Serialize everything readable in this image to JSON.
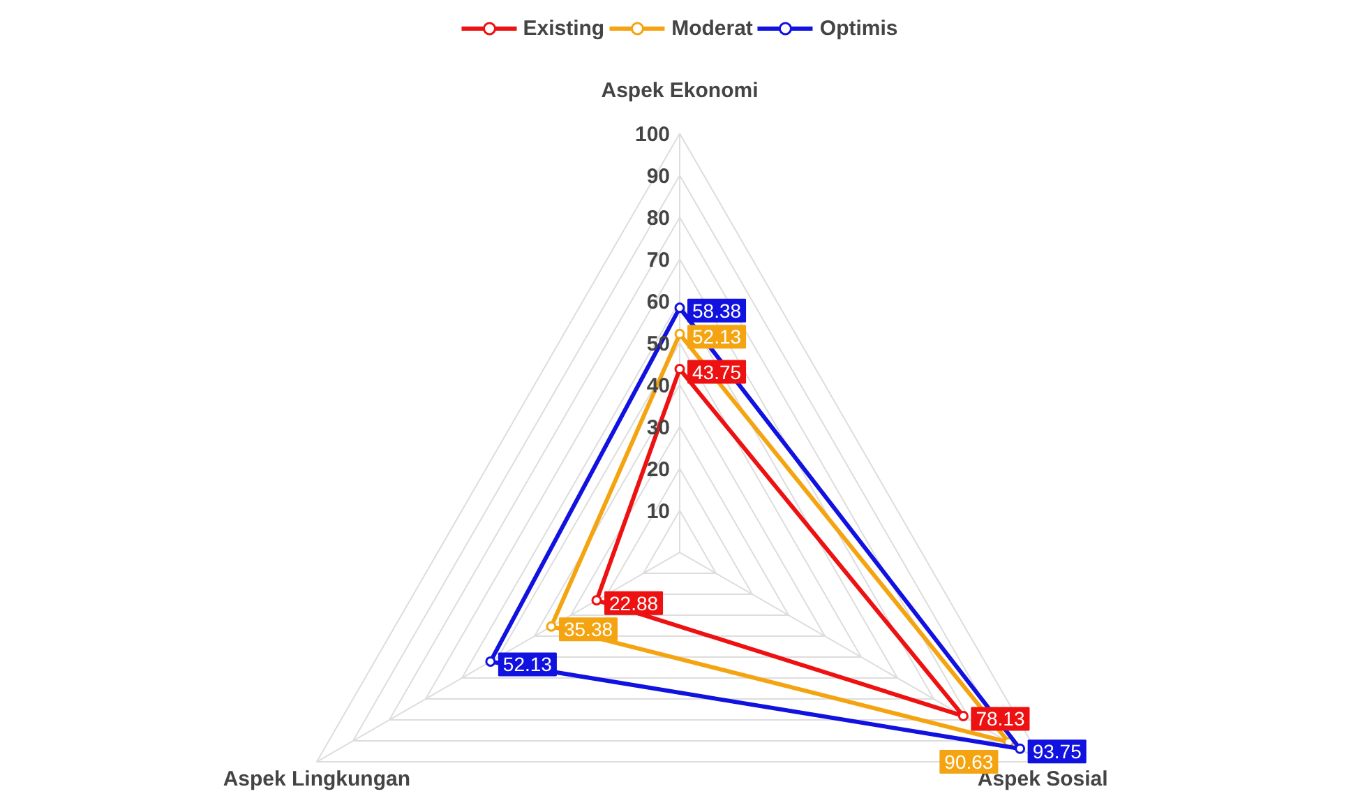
{
  "chart_data": {
    "type": "radar",
    "categories": [
      "Aspek Ekonomi",
      "Aspek Sosial",
      "Aspek Lingkungan"
    ],
    "series": [
      {
        "name": "Existing",
        "color": "#ee1111",
        "values": [
          43.75,
          78.13,
          22.88
        ]
      },
      {
        "name": "Moderat",
        "color": "#f5a411",
        "values": [
          52.13,
          90.63,
          35.38
        ]
      },
      {
        "name": "Optimis",
        "color": "#1111e0",
        "values": [
          58.38,
          93.75,
          52.13
        ]
      }
    ],
    "ylim": [
      0,
      100
    ],
    "yticks": [
      10,
      20,
      30,
      40,
      50,
      60,
      70,
      80,
      90,
      100
    ],
    "grid": true,
    "legend": "top",
    "marker": "circle",
    "data_labels": true
  }
}
